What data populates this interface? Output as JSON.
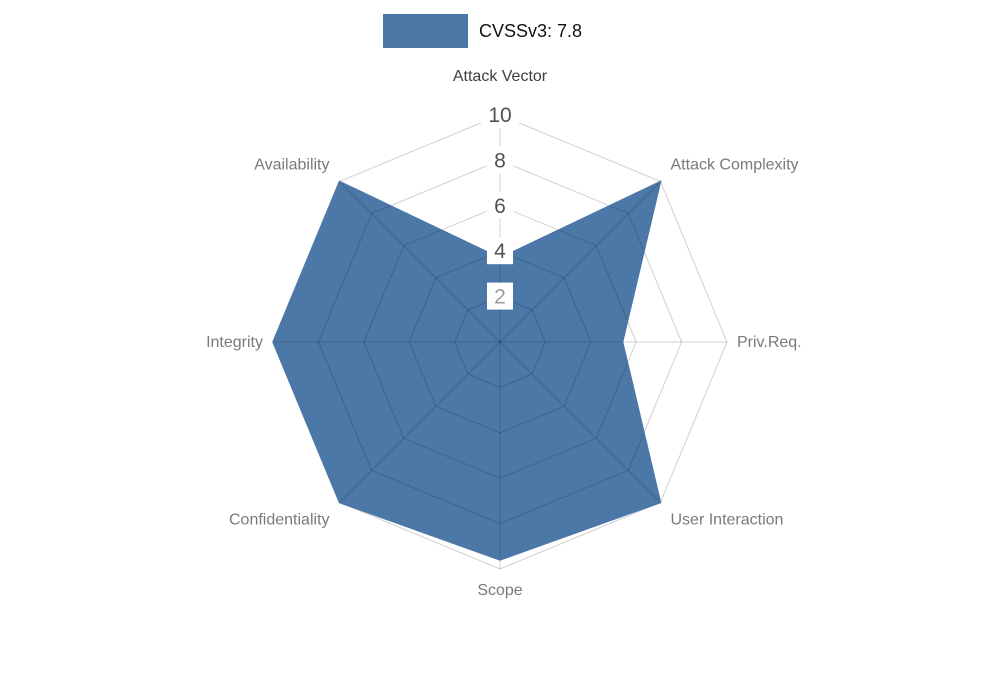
{
  "figure": {
    "background": "#ffffff"
  },
  "legend": {
    "label": "CVSSv3: 7.8",
    "swatch_color": "#4c78a8"
  },
  "chart_data": {
    "type": "radar",
    "title": "CVSSv3: 7.8",
    "categories": [
      "Attack Vector",
      "Attack Complexity",
      "Priv.Req.",
      "User Interaction",
      "Scope",
      "Confidentiality",
      "Integrity",
      "Availability"
    ],
    "series": [
      {
        "name": "CVSSv3: 7.8",
        "values": [
          3.7,
          10,
          5.4,
          10,
          9.6,
          10,
          10,
          10
        ]
      }
    ],
    "radial_range": [
      0,
      10
    ],
    "radial_ticks": [
      {
        "value": 2,
        "muted": true
      },
      {
        "value": 4,
        "muted": false
      },
      {
        "value": 6,
        "muted": false
      },
      {
        "value": 8,
        "muted": false
      },
      {
        "value": 10,
        "muted": false
      }
    ],
    "grid": true,
    "legend_position": "top-center",
    "fill_color": "#4c78a8",
    "grid_color": "rgba(0,0,0,0.18)",
    "tick_color": "#525252",
    "tick_muted_color": "#9e9e9e",
    "label_colors": [
      "#3d3d3d",
      "#7a7a7a",
      "#7a7a7a",
      "#7a7a7a",
      "#7a7a7a",
      "#7a7a7a",
      "#7a7a7a",
      "#7a7a7a"
    ]
  }
}
